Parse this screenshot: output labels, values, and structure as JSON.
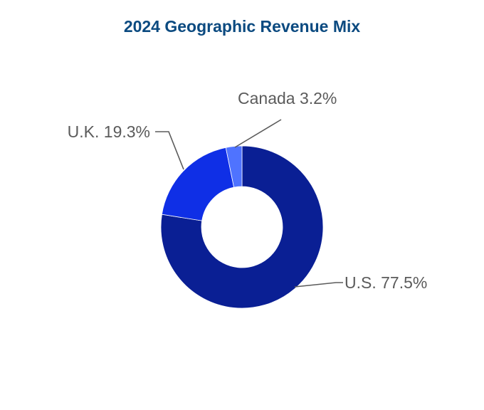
{
  "chart_data": {
    "type": "pie",
    "variant": "donut",
    "title": "2024 Geographic Revenue Mix",
    "slices": [
      {
        "label": "U.S.",
        "value": 77.5,
        "display": "U.S. 77.5%",
        "color": "#0a1f94"
      },
      {
        "label": "U.K.",
        "value": 19.3,
        "display": "U.K. 19.3%",
        "color": "#0f2fe6"
      },
      {
        "label": "Canada",
        "value": 3.2,
        "display": "Canada 3.2%",
        "color": "#4f73ff"
      }
    ],
    "unit": "%",
    "legend": "none"
  },
  "colors": {
    "title": "#0b4a80",
    "label_text": "#5b5b5b",
    "leader_line": "#5b5b5b"
  }
}
